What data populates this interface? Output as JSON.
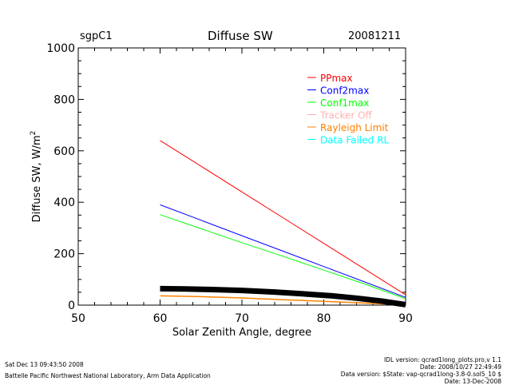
{
  "header": {
    "site": "sgpC1",
    "title": "Diffuse SW",
    "date": "20081211"
  },
  "footer": {
    "timestamp": "Sat Dec 13 09:43:50 2008",
    "lab": "Battelle Pacific Northwest National Laboratory, Arm Data Application",
    "idl_version": "IDL version: qcrad1long_plots.pro,v 1.1",
    "idl_date": "Date: 2008/10/27 22:49:49",
    "data_version": "Data version: $State: vap-qcrad1long-3.8-0.sol5_10 $",
    "data_date": "Date: 13-Dec-2008"
  },
  "chart_data": {
    "type": "line",
    "title": "Diffuse SW",
    "xlabel": "Solar Zenith Angle, degree",
    "ylabel": "Diffuse SW, W/m",
    "ylabel_superscript": "2",
    "xlim": [
      50,
      90
    ],
    "ylim": [
      0,
      1000
    ],
    "xticks": [
      50,
      60,
      70,
      80,
      90
    ],
    "yticks": [
      0,
      200,
      400,
      600,
      800,
      1000
    ],
    "grid": false,
    "legend_position": "top-right",
    "legend": [
      {
        "name": "PPmax",
        "color": "#ff0000"
      },
      {
        "name": "Conf2max",
        "color": "#0000ff"
      },
      {
        "name": "Conf1max",
        "color": "#00ff00"
      },
      {
        "name": "Tracker Off",
        "color": "#ffb0b0"
      },
      {
        "name": "Rayleigh Limit",
        "color": "#ff8000"
      },
      {
        "name": "Data Failed RL",
        "color": "#00ffff"
      }
    ],
    "series": [
      {
        "name": "PPmax",
        "color": "#ff0000",
        "width": 1,
        "x": [
          60,
          65,
          70,
          75,
          80,
          85,
          90
        ],
        "y": [
          640,
          540,
          440,
          340,
          240,
          140,
          40
        ]
      },
      {
        "name": "Conf2max",
        "color": "#0000ff",
        "width": 1,
        "x": [
          60,
          65,
          70,
          75,
          80,
          85,
          90
        ],
        "y": [
          390,
          330,
          270,
          210,
          150,
          90,
          30
        ]
      },
      {
        "name": "Conf1max",
        "color": "#00ff00",
        "width": 1,
        "x": [
          60,
          65,
          70,
          75,
          80,
          85,
          90
        ],
        "y": [
          352,
          297,
          243,
          190,
          136,
          82,
          25
        ]
      },
      {
        "color": "#ff8000",
        "width": 1.5,
        "x": [
          60,
          62,
          65,
          70,
          75,
          80,
          85,
          90
        ],
        "y": [
          36,
          35,
          33,
          28,
          21,
          15,
          8,
          1
        ]
      },
      {
        "color": "#000000",
        "width": 7,
        "x": [
          60,
          63,
          66,
          70,
          74,
          78,
          81,
          84,
          87,
          90
        ],
        "y": [
          64,
          63,
          61,
          57,
          51,
          43,
          36,
          27,
          16,
          2
        ]
      }
    ]
  }
}
